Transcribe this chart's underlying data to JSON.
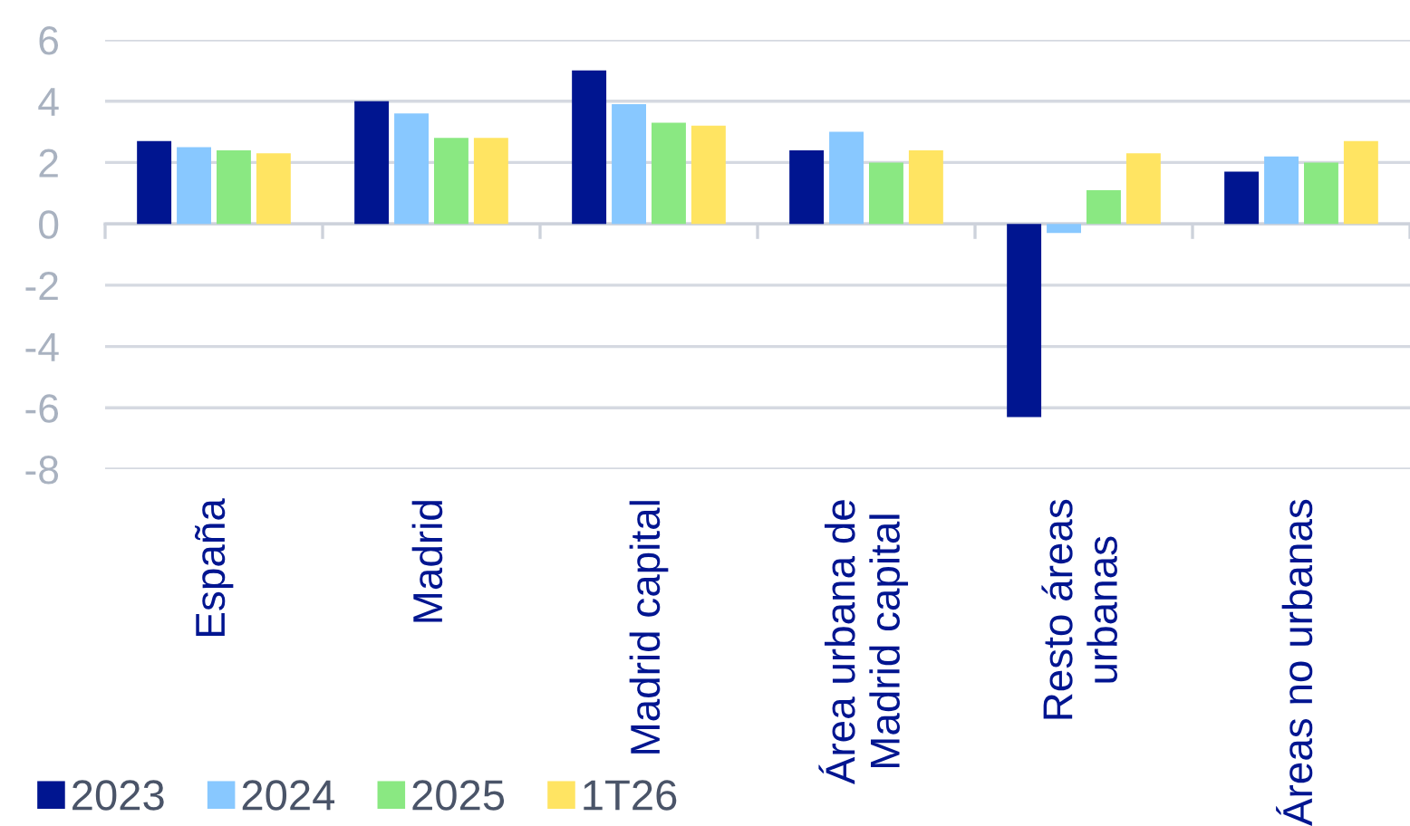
{
  "chart_data": {
    "type": "bar",
    "categories": [
      "España",
      "Madrid",
      "Madrid capital",
      "Área urbana de\nMadrid capital",
      "Resto áreas\nurbanas",
      "Áreas no urbanas"
    ],
    "series": [
      {
        "name": "2023",
        "color": "#001590",
        "values": [
          2.7,
          4.0,
          5.0,
          2.4,
          -6.3,
          1.7
        ]
      },
      {
        "name": "2024",
        "color": "#88c8ff",
        "values": [
          2.5,
          3.6,
          3.9,
          3.0,
          -0.3,
          2.2
        ]
      },
      {
        "name": "2025",
        "color": "#8ae882",
        "values": [
          2.4,
          2.8,
          3.3,
          2.0,
          1.1,
          2.0
        ]
      },
      {
        "name": "1T26",
        "color": "#ffe462",
        "values": [
          2.3,
          2.8,
          3.2,
          2.4,
          2.3,
          2.7
        ]
      }
    ],
    "ylim": [
      -8,
      6
    ],
    "yticks": [
      -8,
      -6,
      -4,
      -2,
      0,
      2,
      4,
      6
    ],
    "grid": "y",
    "legend": "bottom left"
  }
}
